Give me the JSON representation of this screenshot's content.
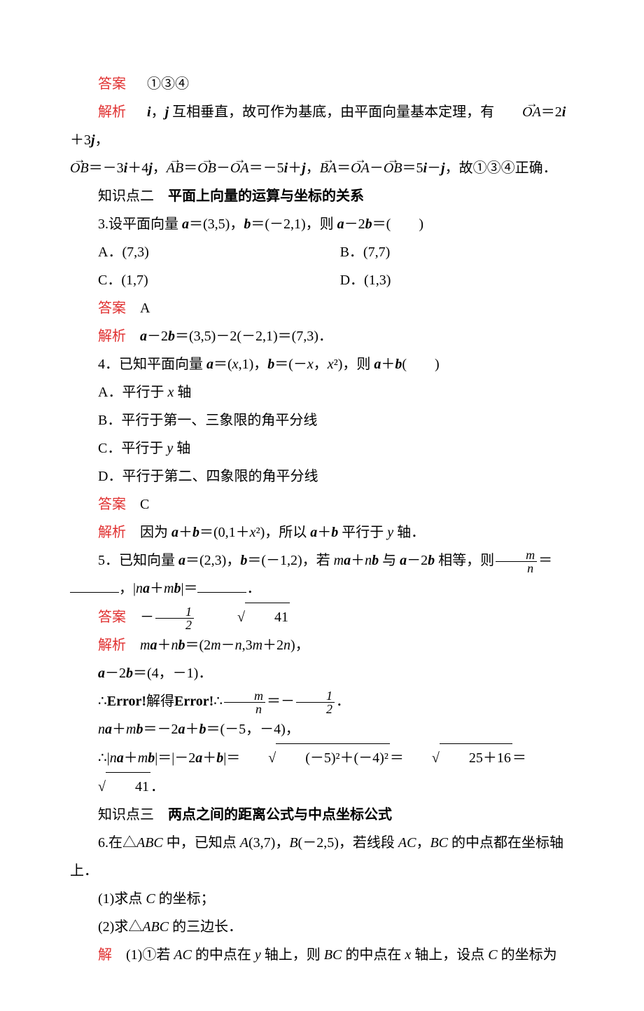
{
  "labels": {
    "answer": "答案",
    "analysis": "解析",
    "solution": "解"
  },
  "line1_answer": "①③④",
  "line2_analysis_a": "i",
  "line2_analysis_b": "，",
  "line2_analysis_c": "j",
  "line2_analysis_d": " 互相垂直，故可作为基底，由平面向量基本定理，有",
  "line2_vec1": "OA",
  "line2_eq1_a": "＝2",
  "line2_eq1_b": "i",
  "line2_eq1_c": "＋3",
  "line2_eq1_d": "j",
  "line2_eq1_e": "，",
  "line3_vec1": "OB",
  "line3_p1": "＝－3",
  "line3_vec2": "AB",
  "line3_vec3": "OB",
  "line3_vec4": "OA",
  "line3_p2": "＝－5",
  "line3_vec5": "BA",
  "line3_vec6": "OA",
  "line3_vec7": "OB",
  "line3_p3": "＝5",
  "line3_tail": "，故①③④正确．",
  "kp2_prefix": "知识点二　",
  "kp2_title": "平面上向量的运算与坐标的关系",
  "q3_stem_a": "3.设平面向量 ",
  "q3_stem_b": "＝(3,5)，",
  "q3_stem_c": "＝(－2,1)，则 ",
  "q3_stem_d": "－2",
  "q3_stem_e": "＝(　　)",
  "q3_optA": "A．(7,3)",
  "q3_optB": "B．(7,7)",
  "q3_optC": "C．(1,7)",
  "q3_optD": "D．(1,3)",
  "q3_answer": "A",
  "q3_analysis_a": "a",
  "q3_analysis_b": "－2",
  "q3_analysis_c": "b",
  "q3_analysis_d": "＝(3,5)－2(－2,1)＝(7,3)．",
  "q4_stem_a": "4．已知平面向量 ",
  "q4_stem_b": "＝(",
  "q4_stem_c": ",1)，",
  "q4_stem_d": "＝(－",
  "q4_stem_e": "，",
  "q4_stem_f": ")，则 ",
  "q4_stem_g": "(　　)",
  "q4_optA": "A．平行于 x 轴",
  "q4_optB": "B．平行于第一、三象限的角平分线",
  "q4_optC": "C．平行于 y 轴",
  "q4_optD": "D．平行于第二、四象限的角平分线",
  "q4_answer": "C",
  "q4_analysis_a": "因为 ",
  "q4_analysis_b": "＝(0,1＋",
  "q4_analysis_c": ")，所以 ",
  "q4_analysis_d": " 平行于 ",
  "q4_analysis_e": " 轴．",
  "q5_stem_a": "5．已知向量 ",
  "q5_stem_b": "＝(2,3)，",
  "q5_stem_c": "＝(－1,2)，若 ",
  "q5_stem_d": " 与 ",
  "q5_stem_e": "－2",
  "q5_stem_f": " 相等，则",
  "q5_stem_g": "＝",
  "q5_line2_a": "，|",
  "q5_line2_b": "|＝",
  "q5_line2_c": "．",
  "q5_ans_frac_num": "1",
  "q5_ans_frac_den": "2",
  "q5_ans_sqrt": "41",
  "q5_a1_a": "m",
  "q5_a1_b": "a",
  "q5_a1_c": "＋",
  "q5_a1_d": "n",
  "q5_a1_e": "b",
  "q5_a1_f": "＝(2",
  "q5_a1_g": "m",
  "q5_a1_h": "－",
  "q5_a1_i": "n",
  "q5_a1_j": ",3",
  "q5_a1_k": "m",
  "q5_a1_l": "＋2",
  "q5_a1_m": "n",
  "q5_a1_n": ")，",
  "q5_a2_a": "a",
  "q5_a2_b": "－2",
  "q5_a2_c": "b",
  "q5_a2_d": "＝(4，－1)．",
  "q5_a3_a": "∴",
  "q5_a3_err1": "Error!",
  "q5_a3_b": "解得",
  "q5_a3_err2": "Error!",
  "q5_a3_c": "∴",
  "q5_a3_frac_num": "m",
  "q5_a3_frac_den": "n",
  "q5_a3_d": "＝－",
  "q5_a3_frac2_num": "1",
  "q5_a3_frac2_den": "2",
  "q5_a3_e": "．",
  "q5_a4_a": "n",
  "q5_a4_b": "a",
  "q5_a4_c": "＋",
  "q5_a4_d": "m",
  "q5_a4_e": "b",
  "q5_a4_f": "＝－2",
  "q5_a4_g": "a",
  "q5_a4_h": "＋",
  "q5_a4_i": "b",
  "q5_a4_j": "＝(－5，－4)，",
  "q5_a5_a": "∴|",
  "q5_a5_b": "|＝|－2",
  "q5_a5_c": "|＝",
  "q5_a5_sqrt1": "(－5)²＋(－4)²",
  "q5_a5_d": "＝",
  "q5_a5_sqrt2": "25＋16",
  "q5_a5_e": "＝",
  "q5_a5_sqrt3": "41",
  "q5_a5_f": "．",
  "kp3_prefix": "知识点三　",
  "kp3_title": "两点之间的距离公式与中点坐标公式",
  "q6_stem_a": "6.在△",
  "q6_stem_b": "ABC",
  "q6_stem_c": " 中，已知点 ",
  "q6_stem_d": "A",
  "q6_stem_e": "(3,7)，",
  "q6_stem_f": "B",
  "q6_stem_g": "(－2,5)，若线段 ",
  "q6_stem_h": "AC",
  "q6_stem_i": "，",
  "q6_stem_j": "BC",
  "q6_stem_k": " 的中点都在坐标轴",
  "q6_line2": "上．",
  "q6_p1": "(1)求点 C 的坐标；",
  "q6_p2": "(2)求△ABC 的三边长．",
  "q6_sol_a": "(1)①若 ",
  "q6_sol_b": "AC",
  "q6_sol_c": " 的中点在 ",
  "q6_sol_d": "y",
  "q6_sol_e": " 轴上，则 ",
  "q6_sol_f": "BC",
  "q6_sol_g": " 的中点在 ",
  "q6_sol_h": "x",
  "q6_sol_i": " 轴上，设点 ",
  "q6_sol_j": "C",
  "q6_sol_k": " 的坐标为"
}
